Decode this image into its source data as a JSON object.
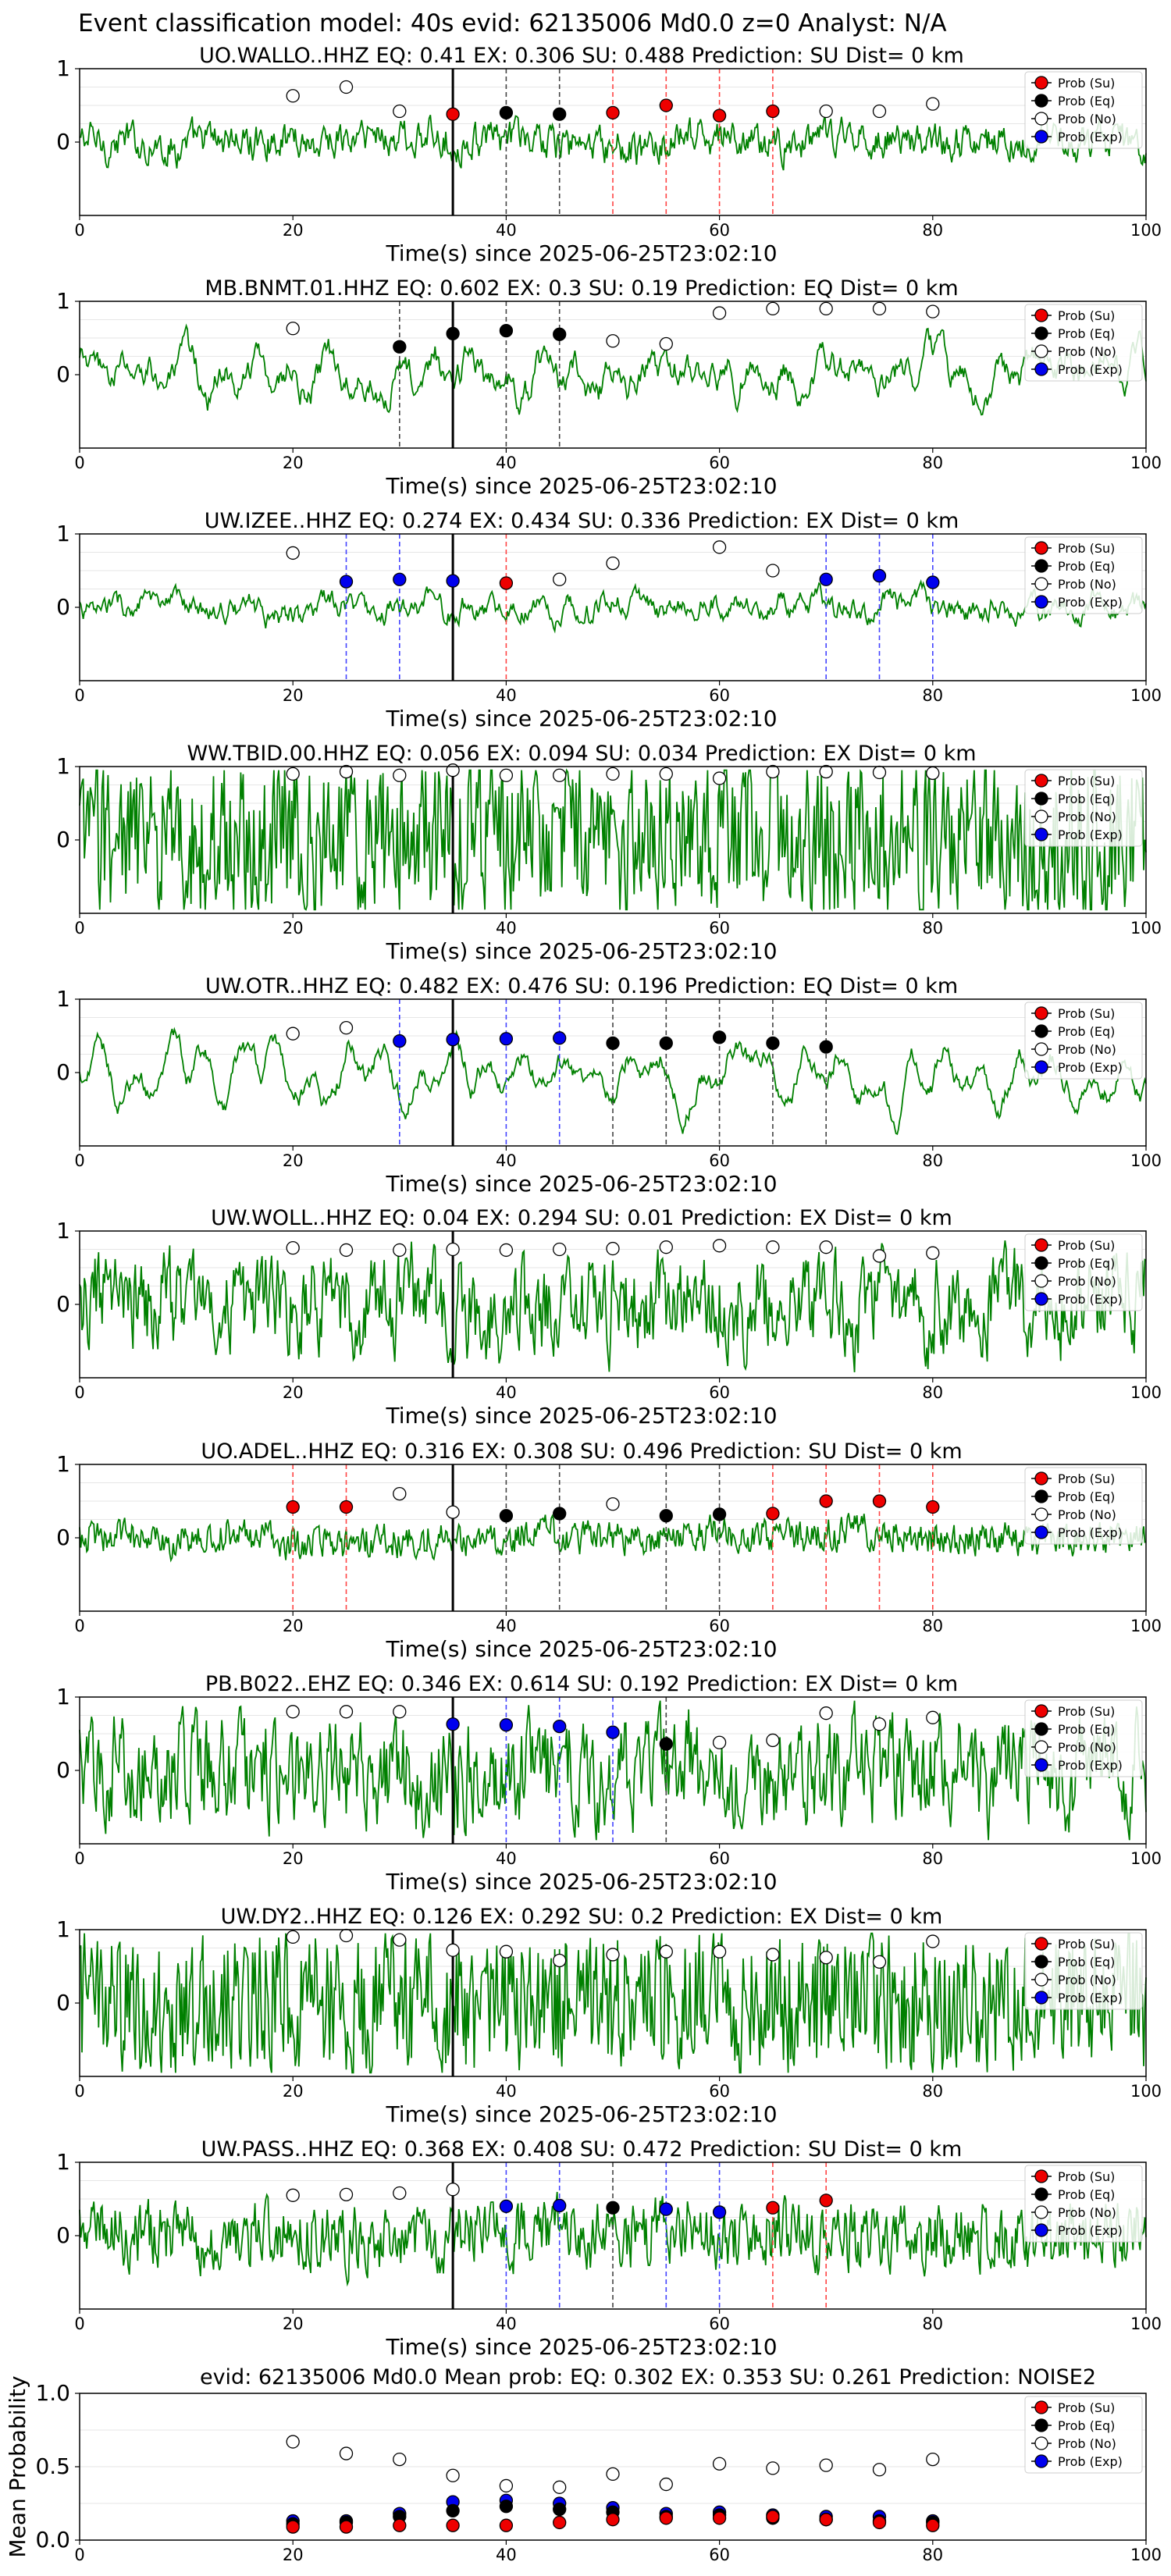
{
  "suptitle": "Event classification model: 40s evid: 62135006 Md0.0 z=0 Analyst: N/A",
  "colors": {
    "su": "#ee0000",
    "eq": "#000000",
    "no": "#ffffff",
    "exp": "#0000ee",
    "trace": "#008000"
  },
  "legend_labels": [
    "Prob (Su)",
    "Prob (Eq)",
    "Prob (No)",
    "Prob (Exp)"
  ],
  "x_tick_labels": [
    "0",
    "20",
    "40",
    "60",
    "80",
    "100"
  ],
  "y_tick_labels": [
    "1",
    "0"
  ],
  "xlabel": "Time(s) since 2025-06-25T23:02:10",
  "chart_data": [
    {
      "type": "line+scatter",
      "title": "UO.WALLO..HHZ   EQ: 0.41   EX: 0.306   SU: 0.488   Prediction: SU    Dist= 0 km",
      "xlim": [
        0,
        100
      ],
      "ylim": [
        -1,
        1
      ],
      "pick_time": 35,
      "noise": [
        [
          20,
          0.63
        ],
        [
          25,
          0.75
        ],
        [
          30,
          0.42
        ],
        [
          70,
          0.42
        ],
        [
          75,
          0.42
        ],
        [
          80,
          0.52
        ]
      ],
      "markers": [
        [
          35,
          "su",
          0.38
        ],
        [
          40,
          "eq",
          0.4
        ],
        [
          45,
          "eq",
          0.38
        ],
        [
          50,
          "su",
          0.4
        ],
        [
          55,
          "su",
          0.5
        ],
        [
          60,
          "su",
          0.36
        ],
        [
          65,
          "su",
          0.42
        ]
      ]
    },
    {
      "type": "line+scatter",
      "title": "MB.BNMT.01.HHZ   EQ: 0.602  EX: 0.3  SU: 0.19   Prediction: EQ    Dist= 0 km",
      "xlim": [
        0,
        100
      ],
      "ylim": [
        -1,
        1
      ],
      "pick_time": 35,
      "noise": [
        [
          20,
          0.63
        ],
        [
          50,
          0.46
        ],
        [
          55,
          0.42
        ],
        [
          60,
          0.84
        ],
        [
          65,
          0.9
        ],
        [
          70,
          0.9
        ],
        [
          75,
          0.9
        ],
        [
          80,
          0.86
        ]
      ],
      "markers": [
        [
          30,
          "eq",
          0.38
        ],
        [
          35,
          "eq",
          0.56
        ],
        [
          40,
          "eq",
          0.6
        ],
        [
          45,
          "eq",
          0.55
        ]
      ]
    },
    {
      "type": "line+scatter",
      "title": "UW.IZEE..HHZ   EQ: 0.274  EX: 0.434  SU: 0.336   Prediction: EX    Dist= 0 km",
      "xlim": [
        0,
        100
      ],
      "ylim": [
        -1,
        1
      ],
      "pick_time": 35,
      "noise": [
        [
          20,
          0.74
        ],
        [
          45,
          0.38
        ],
        [
          50,
          0.6
        ],
        [
          60,
          0.82
        ],
        [
          65,
          0.5
        ]
      ],
      "markers": [
        [
          25,
          "exp",
          0.35
        ],
        [
          30,
          "exp",
          0.38
        ],
        [
          35,
          "exp",
          0.36
        ],
        [
          40,
          "su",
          0.33
        ],
        [
          70,
          "exp",
          0.38
        ],
        [
          75,
          "exp",
          0.43
        ],
        [
          80,
          "exp",
          0.34
        ]
      ]
    },
    {
      "type": "line+scatter",
      "title": "WW.TBID.00.HHZ   EQ: 0.056  EX: 0.094  SU: 0.034   Prediction: EX    Dist= 0 km",
      "xlim": [
        0,
        100
      ],
      "ylim": [
        -1,
        1
      ],
      "pick_time": 35,
      "noise": [
        [
          20,
          0.9
        ],
        [
          25,
          0.93
        ],
        [
          30,
          0.88
        ],
        [
          35,
          0.95
        ],
        [
          40,
          0.88
        ],
        [
          45,
          0.88
        ],
        [
          50,
          0.9
        ],
        [
          55,
          0.9
        ],
        [
          60,
          0.84
        ],
        [
          65,
          0.93
        ],
        [
          70,
          0.93
        ],
        [
          75,
          0.92
        ],
        [
          80,
          0.91
        ]
      ],
      "markers": []
    },
    {
      "type": "line+scatter",
      "title": "UW.OTR..HHZ   EQ: 0.482  EX: 0.476  SU: 0.196   Prediction: EQ    Dist= 0 km",
      "xlim": [
        0,
        100
      ],
      "ylim": [
        -1,
        1
      ],
      "pick_time": 35,
      "noise": [
        [
          20,
          0.53
        ],
        [
          25,
          0.61
        ]
      ],
      "markers": [
        [
          30,
          "exp",
          0.43
        ],
        [
          35,
          "exp",
          0.45
        ],
        [
          40,
          "exp",
          0.46
        ],
        [
          45,
          "exp",
          0.47
        ],
        [
          50,
          "eq",
          0.4
        ],
        [
          55,
          "eq",
          0.4
        ],
        [
          60,
          "eq",
          0.48
        ],
        [
          65,
          "eq",
          0.4
        ],
        [
          70,
          "eq",
          0.35
        ]
      ]
    },
    {
      "type": "line+scatter",
      "title": "UW.WOLL..HHZ   EQ: 0.04  EX: 0.294  SU: 0.01   Prediction: EX    Dist= 0 km",
      "xlim": [
        0,
        100
      ],
      "ylim": [
        -1,
        1
      ],
      "pick_time": 35,
      "noise": [
        [
          20,
          0.77
        ],
        [
          25,
          0.74
        ],
        [
          30,
          0.74
        ],
        [
          35,
          0.75
        ],
        [
          40,
          0.74
        ],
        [
          45,
          0.75
        ],
        [
          50,
          0.76
        ],
        [
          55,
          0.78
        ],
        [
          60,
          0.8
        ],
        [
          65,
          0.78
        ],
        [
          70,
          0.78
        ],
        [
          75,
          0.66
        ],
        [
          80,
          0.7
        ]
      ],
      "markers": []
    },
    {
      "type": "line+scatter",
      "title": "UO.ADEL..HHZ   EQ: 0.316  EX: 0.308  SU: 0.496   Prediction: SU    Dist= 0 km",
      "xlim": [
        0,
        100
      ],
      "ylim": [
        -1,
        1
      ],
      "pick_time": 35,
      "noise": [
        [
          30,
          0.6
        ],
        [
          35,
          0.35
        ],
        [
          50,
          0.46
        ]
      ],
      "markers": [
        [
          20,
          "su",
          0.42
        ],
        [
          25,
          "su",
          0.42
        ],
        [
          40,
          "eq",
          0.3
        ],
        [
          45,
          "eq",
          0.33
        ],
        [
          55,
          "eq",
          0.3
        ],
        [
          60,
          "eq",
          0.32
        ],
        [
          65,
          "su",
          0.33
        ],
        [
          70,
          "su",
          0.5
        ],
        [
          75,
          "su",
          0.5
        ],
        [
          80,
          "su",
          0.42
        ]
      ]
    },
    {
      "type": "line+scatter",
      "title": "PB.B022..EHZ   EQ: 0.346  EX: 0.614  SU: 0.192   Prediction: EX    Dist= 0 km",
      "xlim": [
        0,
        100
      ],
      "ylim": [
        -1,
        1
      ],
      "pick_time": 35,
      "noise": [
        [
          20,
          0.8
        ],
        [
          25,
          0.8
        ],
        [
          30,
          0.8
        ],
        [
          60,
          0.38
        ],
        [
          65,
          0.41
        ],
        [
          70,
          0.78
        ],
        [
          75,
          0.63
        ],
        [
          80,
          0.72
        ]
      ],
      "markers": [
        [
          35,
          "exp",
          0.63
        ],
        [
          40,
          "exp",
          0.62
        ],
        [
          45,
          "exp",
          0.6
        ],
        [
          50,
          "exp",
          0.52
        ],
        [
          55,
          "eq",
          0.36
        ]
      ]
    },
    {
      "type": "line+scatter",
      "title": "UW.DY2..HHZ   EQ: 0.126  EX: 0.292  SU: 0.2   Prediction: EX    Dist= 0 km",
      "xlim": [
        0,
        100
      ],
      "ylim": [
        -1,
        1
      ],
      "pick_time": 35,
      "noise": [
        [
          20,
          0.9
        ],
        [
          25,
          0.92
        ],
        [
          30,
          0.86
        ],
        [
          35,
          0.72
        ],
        [
          40,
          0.7
        ],
        [
          45,
          0.58
        ],
        [
          50,
          0.66
        ],
        [
          55,
          0.7
        ],
        [
          60,
          0.7
        ],
        [
          65,
          0.66
        ],
        [
          70,
          0.62
        ],
        [
          75,
          0.56
        ],
        [
          80,
          0.84
        ]
      ],
      "markers": []
    },
    {
      "type": "line+scatter",
      "title": "UW.PASS..HHZ   EQ: 0.368  EX: 0.408  SU: 0.472   Prediction: SU    Dist= 0 km",
      "xlim": [
        0,
        100
      ],
      "ylim": [
        -1,
        1
      ],
      "pick_time": 35,
      "noise": [
        [
          20,
          0.55
        ],
        [
          25,
          0.56
        ],
        [
          30,
          0.58
        ],
        [
          35,
          0.63
        ]
      ],
      "markers": [
        [
          40,
          "exp",
          0.4
        ],
        [
          45,
          "exp",
          0.41
        ],
        [
          50,
          "eq",
          0.38
        ],
        [
          55,
          "exp",
          0.36
        ],
        [
          60,
          "exp",
          0.32
        ],
        [
          65,
          "su",
          0.38
        ],
        [
          70,
          "su",
          0.48
        ]
      ]
    },
    {
      "type": "scatter",
      "title": "evid: 62135006   Md0.0    Mean prob:    EQ: 0.302   EX: 0.353   SU: 0.261   Prediction: NOISE2",
      "ylabel": "Mean Probability",
      "xlim": [
        0,
        100
      ],
      "ylim": [
        0,
        1
      ],
      "y_tick_labels": [
        "1.0",
        "0.5",
        "0.0"
      ],
      "x": [
        20,
        25,
        30,
        35,
        40,
        45,
        50,
        55,
        60,
        65,
        70,
        75,
        80
      ],
      "series": [
        {
          "key": "no",
          "name": "Prob (No)",
          "values": [
            0.67,
            0.59,
            0.55,
            0.44,
            0.37,
            0.36,
            0.45,
            0.38,
            0.52,
            0.49,
            0.51,
            0.48,
            0.55
          ]
        },
        {
          "key": "exp",
          "name": "Prob (Exp)",
          "values": [
            0.13,
            0.13,
            0.18,
            0.26,
            0.27,
            0.25,
            0.22,
            0.18,
            0.19,
            0.17,
            0.16,
            0.16,
            0.13
          ]
        },
        {
          "key": "eq",
          "name": "Prob (Eq)",
          "values": [
            0.11,
            0.12,
            0.16,
            0.2,
            0.23,
            0.21,
            0.19,
            0.16,
            0.17,
            0.15,
            0.14,
            0.13,
            0.12
          ]
        },
        {
          "key": "su",
          "name": "Prob (Su)",
          "values": [
            0.09,
            0.09,
            0.1,
            0.1,
            0.1,
            0.12,
            0.14,
            0.15,
            0.15,
            0.16,
            0.14,
            0.12,
            0.1
          ]
        }
      ]
    }
  ]
}
